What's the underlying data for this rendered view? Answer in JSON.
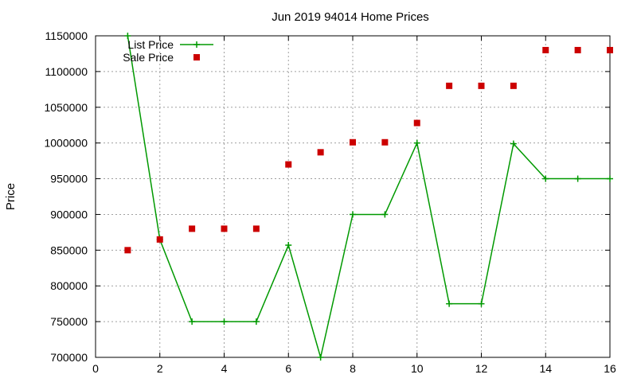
{
  "chart_data": {
    "type": "line",
    "title": "Jun 2019 94014 Home Prices",
    "xlabel": "",
    "ylabel": "Price",
    "xlim": [
      0,
      16
    ],
    "ylim": [
      700000,
      1150000
    ],
    "xticks": [
      0,
      2,
      4,
      6,
      8,
      10,
      12,
      14,
      16
    ],
    "yticks": [
      700000,
      750000,
      800000,
      850000,
      900000,
      950000,
      1000000,
      1050000,
      1100000,
      1150000
    ],
    "grid": true,
    "legend_position": "top-left",
    "series": [
      {
        "name": "List Price",
        "style": "line+points",
        "color": "#009900",
        "x": [
          1,
          2,
          3,
          4,
          5,
          6,
          7,
          8,
          9,
          10,
          11,
          12,
          13,
          14,
          15,
          16
        ],
        "y": [
          1150000,
          865000,
          750000,
          750000,
          750000,
          857000,
          700000,
          900000,
          900000,
          1000000,
          775000,
          775000,
          999000,
          950000,
          950000,
          950000
        ]
      },
      {
        "name": "Sale Price",
        "style": "points",
        "color": "#cc0000",
        "x": [
          1,
          2,
          3,
          4,
          5,
          6,
          7,
          8,
          9,
          10,
          11,
          12,
          13,
          14,
          15,
          16
        ],
        "y": [
          850000,
          865000,
          880000,
          880000,
          880000,
          970000,
          987000,
          1001000,
          1001000,
          1028000,
          1080000,
          1080000,
          1080000,
          1130000,
          1130000,
          1130000
        ]
      }
    ]
  }
}
